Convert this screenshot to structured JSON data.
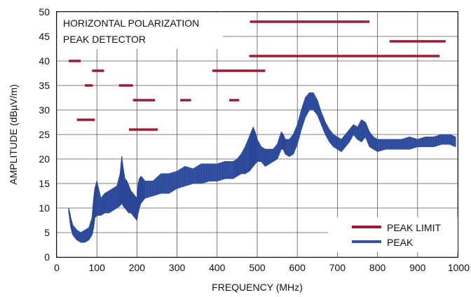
{
  "chart_data": {
    "type": "line",
    "xlabel": "FREQUENCY (MHz)",
    "ylabel": "AMPLITUDE (dBµV/m)",
    "xlim": [
      0,
      1000
    ],
    "ylim": [
      0,
      50
    ],
    "xticks": [
      "0",
      "100",
      "200",
      "300",
      "400",
      "500",
      "600",
      "700",
      "800",
      "900",
      "1000"
    ],
    "yticks": [
      "0",
      "5",
      "10",
      "15",
      "20",
      "25",
      "30",
      "35",
      "40",
      "45",
      "50"
    ],
    "grid": true,
    "legend_position": "bottom-right",
    "annotation": [
      "HORIZONTAL POLARIZATION",
      "PEAK DETECTOR"
    ],
    "colors": {
      "peak": "#3553a5",
      "limit": "#9e1c34"
    },
    "series": [
      {
        "name": "PEAK",
        "kind": "band",
        "x": [
          30,
          35,
          40,
          50,
          60,
          70,
          80,
          88,
          92,
          95,
          100,
          110,
          120,
          130,
          140,
          150,
          158,
          162,
          165,
          170,
          175,
          180,
          185,
          190,
          195,
          200,
          203,
          206,
          210,
          215,
          220,
          240,
          260,
          280,
          300,
          320,
          340,
          360,
          380,
          400,
          420,
          440,
          450,
          460,
          470,
          480,
          485,
          490,
          495,
          500,
          510,
          520,
          530,
          540,
          550,
          560,
          565,
          570,
          580,
          590,
          600,
          610,
          620,
          630,
          640,
          650,
          660,
          670,
          680,
          690,
          700,
          710,
          720,
          730,
          740,
          750,
          760,
          770,
          780,
          790,
          800,
          820,
          840,
          860,
          880,
          900,
          920,
          940,
          960,
          980,
          995
        ],
        "upper": [
          10,
          8,
          6.5,
          5.5,
          5,
          5.5,
          6,
          8,
          12,
          14,
          15.5,
          12,
          13,
          13.5,
          14,
          14.5,
          17,
          20.5,
          18.5,
          16,
          15.5,
          14.5,
          13.5,
          13,
          12.5,
          12,
          15,
          16,
          16.5,
          16,
          15.5,
          15.5,
          17,
          17,
          17.5,
          18.5,
          18,
          19,
          19,
          19,
          19.5,
          19.5,
          20,
          21,
          22.5,
          24.5,
          25.5,
          26.5,
          25.5,
          24,
          22.5,
          22,
          22,
          22,
          23,
          25.5,
          25,
          24,
          24,
          25,
          27,
          30,
          32.5,
          33.5,
          33.5,
          32,
          29.5,
          27.5,
          26,
          25,
          24.5,
          24,
          25,
          26,
          27,
          26.5,
          28,
          27.5,
          25.5,
          24.5,
          24,
          24,
          24,
          24,
          24.5,
          24,
          24.5,
          24.5,
          25,
          25,
          24.5
        ],
        "lower": [
          9,
          6,
          4.5,
          3.5,
          3,
          3,
          3.5,
          4.5,
          6,
          8,
          8.5,
          8.5,
          9,
          9,
          9.5,
          10,
          10.5,
          11,
          10.5,
          10,
          9.5,
          9,
          9,
          8.5,
          8,
          7.5,
          9,
          10,
          11,
          11.5,
          12,
          12.5,
          13,
          13,
          14,
          14.5,
          15,
          15,
          15.5,
          15.5,
          16,
          16,
          16.5,
          17,
          17,
          17.5,
          18,
          18.5,
          19,
          19.5,
          19.5,
          18.5,
          19,
          19.5,
          20,
          22,
          22,
          21,
          20.5,
          21,
          23,
          26,
          28.5,
          30,
          30,
          29,
          27,
          25,
          23.5,
          22.5,
          22,
          21.5,
          22.5,
          23.5,
          25,
          24,
          23.5,
          24.5,
          22.5,
          22,
          21.5,
          22,
          22,
          22,
          22,
          22.5,
          22.5,
          22.5,
          23,
          23,
          22.5
        ]
      }
    ],
    "peak_limits": {
      "name": "PEAK LIMIT",
      "segments": [
        {
          "x1": 30,
          "x2": 60,
          "y": 40
        },
        {
          "x1": 50,
          "x2": 95,
          "y": 28
        },
        {
          "x1": 70,
          "x2": 90,
          "y": 35
        },
        {
          "x1": 88,
          "x2": 118,
          "y": 38
        },
        {
          "x1": 155,
          "x2": 190,
          "y": 35
        },
        {
          "x1": 180,
          "x2": 252,
          "y": 26
        },
        {
          "x1": 190,
          "x2": 245,
          "y": 32
        },
        {
          "x1": 308,
          "x2": 335,
          "y": 32
        },
        {
          "x1": 430,
          "x2": 455,
          "y": 32
        },
        {
          "x1": 388,
          "x2": 520,
          "y": 38
        },
        {
          "x1": 482,
          "x2": 780,
          "y": 48
        },
        {
          "x1": 480,
          "x2": 955,
          "y": 41
        },
        {
          "x1": 830,
          "x2": 970,
          "y": 44
        }
      ]
    }
  }
}
